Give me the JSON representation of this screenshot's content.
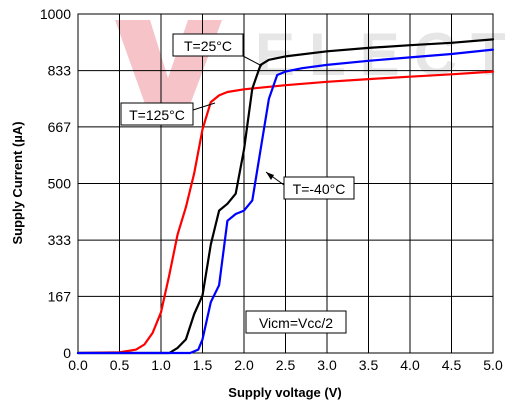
{
  "chart_data": {
    "type": "line",
    "xlabel": "Supply voltage (V)",
    "ylabel": "Supply Current (µA)",
    "xlim": [
      0.0,
      5.0
    ],
    "ylim": [
      0,
      1000
    ],
    "xticks": [
      0.0,
      0.5,
      1.0,
      1.5,
      2.0,
      2.5,
      3.0,
      3.5,
      4.0,
      4.5,
      5.0
    ],
    "xtick_labels": [
      "0.0",
      "0.5",
      "1.0",
      "1.5",
      "2.0",
      "2.5",
      "3.0",
      "3.5",
      "4.0",
      "4.5",
      "5.0"
    ],
    "yticks": [
      0,
      167,
      333,
      500,
      667,
      833,
      1000
    ],
    "ytick_labels": [
      "0",
      "167",
      "333",
      "500",
      "667",
      "833",
      "1000"
    ],
    "grid": true,
    "series": [
      {
        "name": "T=125°C",
        "color": "#ff0000",
        "x": [
          0.0,
          0.5,
          0.7,
          0.8,
          0.9,
          1.0,
          1.1,
          1.2,
          1.3,
          1.4,
          1.5,
          1.6,
          1.7,
          1.8,
          2.0,
          2.5,
          3.0,
          3.5,
          4.0,
          4.5,
          5.0
        ],
        "y": [
          0,
          2,
          10,
          25,
          60,
          120,
          230,
          350,
          430,
          530,
          660,
          740,
          760,
          770,
          778,
          790,
          800,
          808,
          815,
          822,
          830
        ]
      },
      {
        "name": "T=25°C",
        "color": "#000000",
        "x": [
          0.0,
          1.1,
          1.2,
          1.3,
          1.4,
          1.5,
          1.6,
          1.7,
          1.8,
          1.9,
          2.0,
          2.1,
          2.2,
          2.3,
          2.5,
          3.0,
          3.5,
          4.0,
          4.5,
          5.0
        ],
        "y": [
          0,
          0,
          15,
          40,
          115,
          170,
          320,
          420,
          440,
          470,
          600,
          780,
          850,
          865,
          875,
          890,
          900,
          908,
          915,
          925
        ]
      },
      {
        "name": "T=-40°C",
        "color": "#0000ff",
        "x": [
          0.0,
          1.35,
          1.45,
          1.5,
          1.6,
          1.7,
          1.8,
          1.9,
          2.0,
          2.1,
          2.2,
          2.3,
          2.4,
          2.5,
          2.7,
          3.0,
          3.5,
          4.0,
          4.5,
          5.0
        ],
        "y": [
          0,
          0,
          10,
          40,
          150,
          200,
          390,
          410,
          420,
          450,
          600,
          750,
          820,
          830,
          840,
          850,
          862,
          872,
          882,
          895
        ]
      }
    ],
    "annotations": [
      {
        "text": "T=25°C",
        "box": true
      },
      {
        "text": "T=125°C",
        "box": true
      },
      {
        "text": "T=-40°C",
        "box": true
      },
      {
        "text": "Vicm=Vcc/2",
        "box": true
      }
    ],
    "watermark": "ELECT"
  }
}
